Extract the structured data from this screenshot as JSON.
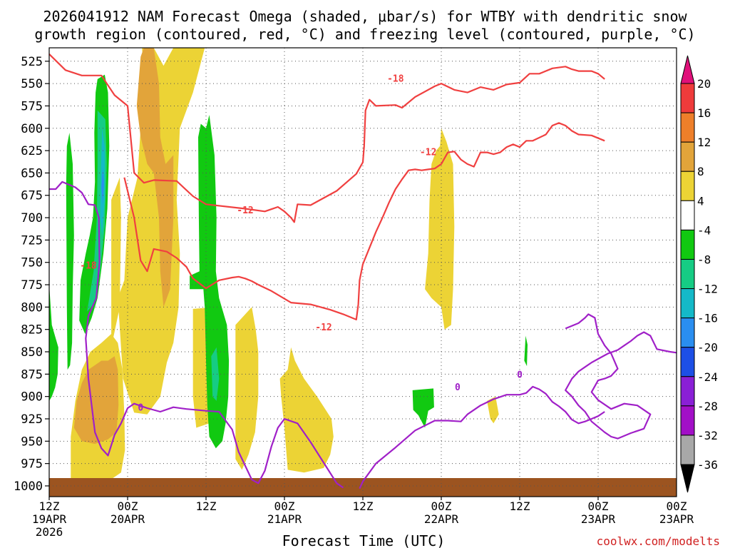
{
  "chart_data": {
    "type": "contour-time-height",
    "title_line1": "2026041912 NAM Forecast Omega (shaded, μbar/s) for WTBY with dendritic snow",
    "title_line2": "growth region (contoured, red, °C) and freezing level (contoured, purple, °C)",
    "xlabel": "Forecast Time (UTC)",
    "credit": "coolwx.com/modelts",
    "y_axis": {
      "ticks": [
        "525",
        "550",
        "575",
        "600",
        "625",
        "650",
        "675",
        "700",
        "725",
        "750",
        "775",
        "800",
        "825",
        "850",
        "875",
        "900",
        "925",
        "950",
        "975",
        "1000"
      ],
      "range_hpa": [
        510,
        1012
      ]
    },
    "x_axis": {
      "range_hours": [
        0,
        96
      ],
      "ticks": [
        {
          "hour": 0,
          "line1": "12Z",
          "line2": "19APR",
          "line3": "2026"
        },
        {
          "hour": 12,
          "line1": "00Z",
          "line2": "20APR",
          "line3": ""
        },
        {
          "hour": 24,
          "line1": "12Z",
          "line2": "",
          "line3": ""
        },
        {
          "hour": 36,
          "line1": "00Z",
          "line2": "21APR",
          "line3": ""
        },
        {
          "hour": 48,
          "line1": "12Z",
          "line2": "",
          "line3": ""
        },
        {
          "hour": 60,
          "line1": "00Z",
          "line2": "22APR",
          "line3": ""
        },
        {
          "hour": 72,
          "line1": "12Z",
          "line2": "",
          "line3": ""
        },
        {
          "hour": 84,
          "line1": "00Z",
          "line2": "23APR",
          "line3": ""
        }
      ]
    },
    "colorbar": {
      "labels": [
        "20",
        "16",
        "12",
        "8",
        "4",
        "-4",
        "-8",
        "-12",
        "-16",
        "-20",
        "-24",
        "-28",
        "-32",
        "-36"
      ],
      "colors": [
        "#ef3b3b",
        "#ee7f2a",
        "#e2a43a",
        "#ecd335",
        "#ffffff",
        "#11c911",
        "#16cc84",
        "#14b9c8",
        "#2a8ef0",
        "#1d4fe6",
        "#8a1fd6",
        "#a20fc7",
        "#a8a8a8"
      ],
      "top_arrow_color": "#e0107a",
      "bottom_arrow_color": "#000000"
    },
    "contour_labels": {
      "dgz_red": [
        "-18",
        "-12",
        "-18",
        "-12",
        "-12"
      ],
      "freezing_purple": [
        "0",
        "0",
        "0"
      ]
    },
    "series": [
      {
        "name": "DGZ -18C (red)",
        "color": "#f04040",
        "points": [
          [
            0,
            517
          ],
          [
            2.5,
            535
          ],
          [
            5,
            541
          ],
          [
            8,
            541
          ],
          [
            10,
            563
          ],
          [
            12,
            575
          ],
          [
            12.4,
            605
          ],
          [
            13,
            650
          ],
          [
            14.5,
            661
          ],
          [
            16,
            658
          ],
          [
            19.5,
            659
          ],
          [
            22,
            676
          ],
          [
            24,
            685
          ],
          [
            30,
            690
          ],
          [
            33,
            693
          ],
          [
            35,
            688
          ],
          [
            36,
            693
          ],
          [
            37,
            700
          ],
          [
            37.5,
            705
          ],
          [
            38,
            685
          ],
          [
            40,
            686
          ],
          [
            44,
            670
          ],
          [
            47,
            651
          ],
          [
            48,
            638
          ],
          [
            48.2,
            620
          ],
          [
            48.4,
            580
          ],
          [
            49,
            568
          ],
          [
            50,
            575
          ],
          [
            53,
            574
          ],
          [
            54,
            577
          ],
          [
            56,
            565
          ],
          [
            59,
            553
          ],
          [
            60,
            550
          ],
          [
            62,
            557
          ],
          [
            64,
            560
          ],
          [
            66,
            554
          ],
          [
            68,
            557
          ],
          [
            70,
            551
          ],
          [
            72,
            549
          ],
          [
            73.5,
            539
          ],
          [
            75,
            539
          ],
          [
            77,
            533
          ],
          [
            79,
            531
          ],
          [
            80,
            534
          ],
          [
            81,
            536
          ],
          [
            83,
            536
          ],
          [
            84,
            539
          ],
          [
            85,
            545
          ]
        ]
      },
      {
        "name": "DGZ -12C (red)",
        "color": "#f04040",
        "points": [
          [
            11.5,
            655
          ],
          [
            13,
            700
          ],
          [
            14,
            748
          ],
          [
            15,
            760
          ],
          [
            16,
            735
          ],
          [
            18,
            738
          ],
          [
            19.5,
            745
          ],
          [
            21,
            755
          ],
          [
            22,
            768
          ],
          [
            24,
            779
          ],
          [
            26,
            770
          ],
          [
            28,
            767
          ],
          [
            29,
            766
          ],
          [
            30,
            768
          ],
          [
            31,
            771
          ],
          [
            32,
            775
          ],
          [
            34,
            782
          ],
          [
            37,
            795
          ],
          [
            40,
            797
          ],
          [
            43,
            803
          ],
          [
            45,
            808
          ],
          [
            47,
            814
          ],
          [
            47.3,
            797
          ],
          [
            47.5,
            770
          ],
          [
            48,
            752
          ],
          [
            50,
            716
          ],
          [
            51,
            700
          ],
          [
            52,
            683
          ],
          [
            53,
            668
          ],
          [
            54,
            657
          ],
          [
            55,
            647
          ],
          [
            56,
            646
          ],
          [
            57,
            647
          ],
          [
            58,
            646
          ],
          [
            59,
            645
          ],
          [
            60,
            640
          ],
          [
            61,
            627
          ],
          [
            62,
            626
          ],
          [
            63,
            635
          ],
          [
            64,
            640
          ],
          [
            65,
            643
          ],
          [
            66,
            627
          ],
          [
            67,
            627
          ],
          [
            68,
            629
          ],
          [
            69,
            627
          ],
          [
            70,
            621
          ],
          [
            71,
            618
          ],
          [
            72,
            621
          ],
          [
            73,
            614
          ],
          [
            74,
            614
          ],
          [
            76,
            607
          ],
          [
            77,
            597
          ],
          [
            78,
            594
          ],
          [
            79,
            597
          ],
          [
            80,
            603
          ],
          [
            81,
            607
          ],
          [
            83,
            608
          ],
          [
            85,
            614
          ]
        ]
      },
      {
        "name": "Freezing level 0C (purple)",
        "color": "#a020c8",
        "points": [
          [
            0,
            668
          ],
          [
            1,
            668
          ],
          [
            2,
            660
          ],
          [
            4,
            666
          ],
          [
            5,
            672
          ],
          [
            6,
            685
          ],
          [
            7,
            686
          ],
          [
            7.6,
            700
          ],
          [
            7.7,
            750
          ],
          [
            7.2,
            790
          ],
          [
            6,
            810
          ],
          [
            5.6,
            835
          ],
          [
            6,
            880
          ],
          [
            6.5,
            910
          ],
          [
            7,
            940
          ],
          [
            8,
            958
          ],
          [
            9,
            966
          ],
          [
            10,
            943
          ],
          [
            11,
            930
          ],
          [
            12,
            913
          ],
          [
            13,
            908
          ],
          [
            15,
            913
          ],
          [
            17,
            917
          ],
          [
            19,
            912
          ],
          [
            21,
            914
          ],
          [
            24,
            916
          ],
          [
            26,
            917
          ],
          [
            28,
            937
          ],
          [
            29,
            962
          ],
          [
            31,
            993
          ],
          [
            32,
            997
          ],
          [
            33,
            983
          ],
          [
            34,
            956
          ],
          [
            35,
            935
          ],
          [
            36,
            925
          ],
          [
            38,
            930
          ],
          [
            40,
            951
          ],
          [
            42,
            974
          ],
          [
            44,
            997
          ],
          [
            45,
            1002
          ]
        ]
      },
      {
        "name": "Freezing level 0C right (purple)",
        "color": "#a020c8",
        "points": [
          [
            47.5,
            1003
          ],
          [
            48,
            995
          ],
          [
            50,
            975
          ],
          [
            53,
            957
          ],
          [
            56,
            938
          ],
          [
            59,
            927
          ],
          [
            61,
            927
          ],
          [
            63,
            928
          ],
          [
            64,
            920
          ],
          [
            66,
            910
          ],
          [
            68,
            903
          ],
          [
            70,
            898
          ],
          [
            72,
            898
          ],
          [
            73,
            896
          ],
          [
            74,
            889
          ],
          [
            75,
            892
          ],
          [
            76,
            897
          ],
          [
            77,
            906
          ],
          [
            78,
            911
          ],
          [
            79,
            917
          ],
          [
            80,
            926
          ],
          [
            81,
            930
          ],
          [
            82,
            928
          ],
          [
            83,
            925
          ],
          [
            84,
            922
          ],
          [
            85,
            917
          ]
        ]
      },
      {
        "name": "Freezing level 0C loop (purple)",
        "color": "#a020c8",
        "points": [
          [
            79,
            824
          ],
          [
            81,
            818
          ],
          [
            82,
            812
          ],
          [
            82.5,
            808
          ],
          [
            83.5,
            812
          ],
          [
            84,
            830
          ],
          [
            85,
            843
          ],
          [
            86,
            852
          ],
          [
            87,
            869
          ],
          [
            86,
            877
          ],
          [
            85,
            880
          ],
          [
            84,
            882
          ],
          [
            83,
            895
          ],
          [
            84,
            904
          ],
          [
            86,
            914
          ],
          [
            88,
            908
          ],
          [
            90,
            910
          ],
          [
            92,
            920
          ],
          [
            91,
            936
          ],
          [
            89,
            941
          ],
          [
            87,
            947
          ],
          [
            86,
            945
          ],
          [
            85,
            940
          ],
          [
            83,
            928
          ],
          [
            82,
            917
          ],
          [
            81,
            910
          ],
          [
            80,
            900
          ],
          [
            79,
            893
          ],
          [
            80,
            880
          ],
          [
            81,
            872
          ],
          [
            82,
            867
          ],
          [
            83,
            862
          ],
          [
            84,
            858
          ],
          [
            85.5,
            852
          ],
          [
            87,
            848
          ],
          [
            88,
            843
          ],
          [
            89,
            838
          ],
          [
            90,
            832
          ],
          [
            91,
            828
          ],
          [
            92,
            832
          ],
          [
            93,
            847
          ],
          [
            95,
            850
          ],
          [
            96,
            851
          ]
        ]
      }
    ],
    "omega_regions_note": "Positive (yellow/orange) omega shading and negative (green/cyan/blue) shading drawn as approximate regions"
  }
}
